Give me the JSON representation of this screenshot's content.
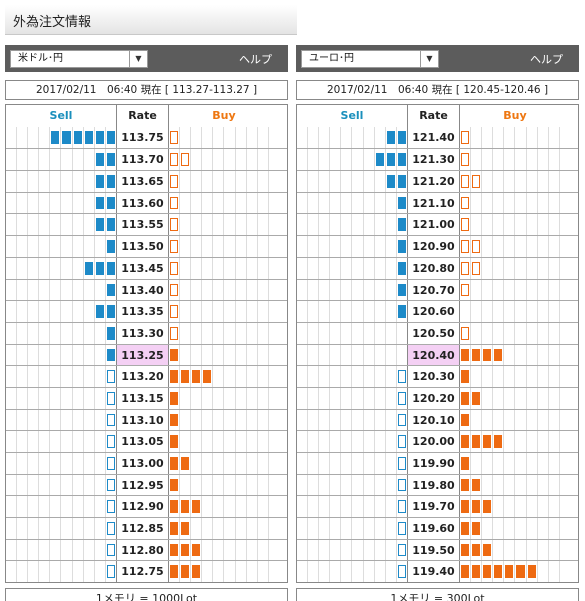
{
  "title": "外為注文情報",
  "help_label": "ヘルプ",
  "headers": {
    "sell": "Sell",
    "rate": "Rate",
    "buy": "Buy"
  },
  "colors": {
    "sell": "#1d8ac8",
    "buy": "#ee6a12",
    "current_rate_bg": "#f4d0f4",
    "header_bar": "#5c5c5c"
  },
  "panels": [
    {
      "pair": "米ドル･円",
      "timestamp": "2017/02/11　06:40 現在 [ 113.27-113.27 ]",
      "unit": "1メモリ = 1000Lot",
      "current_rate": "113.25",
      "rows": [
        {
          "rate": "113.75",
          "sell": 6,
          "sell_type": "order",
          "buy": 1,
          "buy_type": "position"
        },
        {
          "rate": "113.70",
          "sell": 2,
          "sell_type": "order",
          "buy": 2,
          "buy_type": "position"
        },
        {
          "rate": "113.65",
          "sell": 2,
          "sell_type": "order",
          "buy": 1,
          "buy_type": "position"
        },
        {
          "rate": "113.60",
          "sell": 2,
          "sell_type": "order",
          "buy": 1,
          "buy_type": "position"
        },
        {
          "rate": "113.55",
          "sell": 2,
          "sell_type": "order",
          "buy": 1,
          "buy_type": "position"
        },
        {
          "rate": "113.50",
          "sell": 1,
          "sell_type": "order",
          "buy": 1,
          "buy_type": "position"
        },
        {
          "rate": "113.45",
          "sell": 3,
          "sell_type": "order",
          "buy": 1,
          "buy_type": "position"
        },
        {
          "rate": "113.40",
          "sell": 1,
          "sell_type": "order",
          "buy": 1,
          "buy_type": "position"
        },
        {
          "rate": "113.35",
          "sell": 2,
          "sell_type": "order",
          "buy": 1,
          "buy_type": "position"
        },
        {
          "rate": "113.30",
          "sell": 1,
          "sell_type": "order",
          "buy": 1,
          "buy_type": "position"
        },
        {
          "rate": "113.25",
          "sell": 1,
          "sell_type": "order",
          "buy": 1,
          "buy_type": "order"
        },
        {
          "rate": "113.20",
          "sell": 1,
          "sell_type": "position",
          "buy": 4,
          "buy_type": "order"
        },
        {
          "rate": "113.15",
          "sell": 1,
          "sell_type": "position",
          "buy": 1,
          "buy_type": "order"
        },
        {
          "rate": "113.10",
          "sell": 1,
          "sell_type": "position",
          "buy": 1,
          "buy_type": "order"
        },
        {
          "rate": "113.05",
          "sell": 1,
          "sell_type": "position",
          "buy": 1,
          "buy_type": "order"
        },
        {
          "rate": "113.00",
          "sell": 1,
          "sell_type": "position",
          "buy": 2,
          "buy_type": "order"
        },
        {
          "rate": "112.95",
          "sell": 1,
          "sell_type": "position",
          "buy": 1,
          "buy_type": "order"
        },
        {
          "rate": "112.90",
          "sell": 1,
          "sell_type": "position",
          "buy": 3,
          "buy_type": "order"
        },
        {
          "rate": "112.85",
          "sell": 1,
          "sell_type": "position",
          "buy": 2,
          "buy_type": "order"
        },
        {
          "rate": "112.80",
          "sell": 1,
          "sell_type": "position",
          "buy": 3,
          "buy_type": "order"
        },
        {
          "rate": "112.75",
          "sell": 1,
          "sell_type": "position",
          "buy": 3,
          "buy_type": "order"
        }
      ]
    },
    {
      "pair": "ユーロ･円",
      "timestamp": "2017/02/11　06:40 現在 [ 120.45-120.46 ]",
      "unit": "1メモリ = 300Lot",
      "current_rate": "120.40",
      "rows": [
        {
          "rate": "121.40",
          "sell": 2,
          "sell_type": "order",
          "buy": 1,
          "buy_type": "position"
        },
        {
          "rate": "121.30",
          "sell": 3,
          "sell_type": "order",
          "buy": 1,
          "buy_type": "position"
        },
        {
          "rate": "121.20",
          "sell": 2,
          "sell_type": "order",
          "buy": 2,
          "buy_type": "position"
        },
        {
          "rate": "121.10",
          "sell": 1,
          "sell_type": "order",
          "buy": 1,
          "buy_type": "position"
        },
        {
          "rate": "121.00",
          "sell": 1,
          "sell_type": "order",
          "buy": 1,
          "buy_type": "position"
        },
        {
          "rate": "120.90",
          "sell": 1,
          "sell_type": "order",
          "buy": 2,
          "buy_type": "position"
        },
        {
          "rate": "120.80",
          "sell": 1,
          "sell_type": "order",
          "buy": 2,
          "buy_type": "position"
        },
        {
          "rate": "120.70",
          "sell": 1,
          "sell_type": "order",
          "buy": 1,
          "buy_type": "position"
        },
        {
          "rate": "120.60",
          "sell": 1,
          "sell_type": "order",
          "buy": 0,
          "buy_type": "position"
        },
        {
          "rate": "120.50",
          "sell": 0,
          "sell_type": "order",
          "buy": 1,
          "buy_type": "position"
        },
        {
          "rate": "120.40",
          "sell": 0,
          "sell_type": "order",
          "buy": 4,
          "buy_type": "order"
        },
        {
          "rate": "120.30",
          "sell": 1,
          "sell_type": "position",
          "buy": 1,
          "buy_type": "order"
        },
        {
          "rate": "120.20",
          "sell": 1,
          "sell_type": "position",
          "buy": 2,
          "buy_type": "order"
        },
        {
          "rate": "120.10",
          "sell": 1,
          "sell_type": "position",
          "buy": 1,
          "buy_type": "order"
        },
        {
          "rate": "120.00",
          "sell": 1,
          "sell_type": "position",
          "buy": 4,
          "buy_type": "order"
        },
        {
          "rate": "119.90",
          "sell": 1,
          "sell_type": "position",
          "buy": 1,
          "buy_type": "order"
        },
        {
          "rate": "119.80",
          "sell": 1,
          "sell_type": "position",
          "buy": 2,
          "buy_type": "order"
        },
        {
          "rate": "119.70",
          "sell": 1,
          "sell_type": "position",
          "buy": 3,
          "buy_type": "order"
        },
        {
          "rate": "119.60",
          "sell": 1,
          "sell_type": "position",
          "buy": 2,
          "buy_type": "order"
        },
        {
          "rate": "119.50",
          "sell": 1,
          "sell_type": "position",
          "buy": 3,
          "buy_type": "order"
        },
        {
          "rate": "119.40",
          "sell": 1,
          "sell_type": "position",
          "buy": 7,
          "buy_type": "order"
        }
      ]
    }
  ]
}
